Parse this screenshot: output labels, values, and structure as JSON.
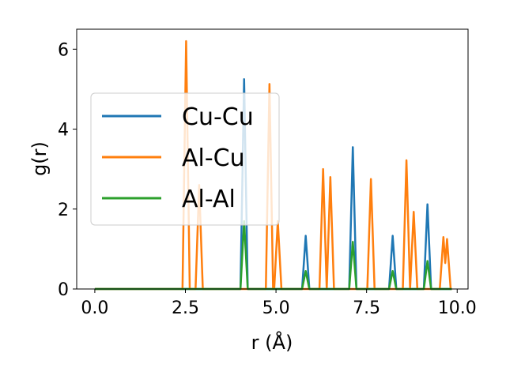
{
  "chart_data": {
    "type": "line",
    "xlabel": "r (Å)",
    "ylabel": "g(r)",
    "xlim": [
      -0.5,
      10.3
    ],
    "ylim": [
      0,
      6.5
    ],
    "x_ticks": [
      0.0,
      2.5,
      5.0,
      7.5,
      10.0
    ],
    "x_tick_labels": [
      "0.0",
      "2.5",
      "5.0",
      "7.5",
      "10.0"
    ],
    "y_ticks": [
      0,
      2,
      4,
      6
    ],
    "y_tick_labels": [
      "0",
      "2",
      "4",
      "6"
    ],
    "grid": false,
    "legend_position": "center-left",
    "x_range": [
      0.0,
      9.85
    ],
    "peak_width": 0.1,
    "series": [
      {
        "name": "Cu-Cu",
        "color": "#1f77b4",
        "peaks": [
          [
            4.12,
            5.25
          ],
          [
            5.82,
            1.33
          ],
          [
            7.12,
            3.55
          ],
          [
            8.22,
            1.33
          ],
          [
            9.18,
            2.12
          ]
        ]
      },
      {
        "name": "Al-Cu",
        "color": "#ff7f0e",
        "peaks": [
          [
            2.52,
            6.2
          ],
          [
            2.88,
            2.6
          ],
          [
            4.82,
            5.13
          ],
          [
            5.05,
            1.7
          ],
          [
            6.3,
            3.0
          ],
          [
            6.5,
            2.8
          ],
          [
            7.62,
            2.75
          ],
          [
            8.6,
            3.22
          ],
          [
            8.8,
            1.93
          ],
          [
            9.62,
            1.3
          ],
          [
            9.72,
            1.25
          ]
        ]
      },
      {
        "name": "Al-Al",
        "color": "#2ca02c",
        "peaks": [
          [
            4.12,
            1.7
          ],
          [
            5.82,
            0.45
          ],
          [
            7.12,
            1.18
          ],
          [
            8.22,
            0.45
          ],
          [
            9.18,
            0.7
          ]
        ]
      }
    ]
  }
}
